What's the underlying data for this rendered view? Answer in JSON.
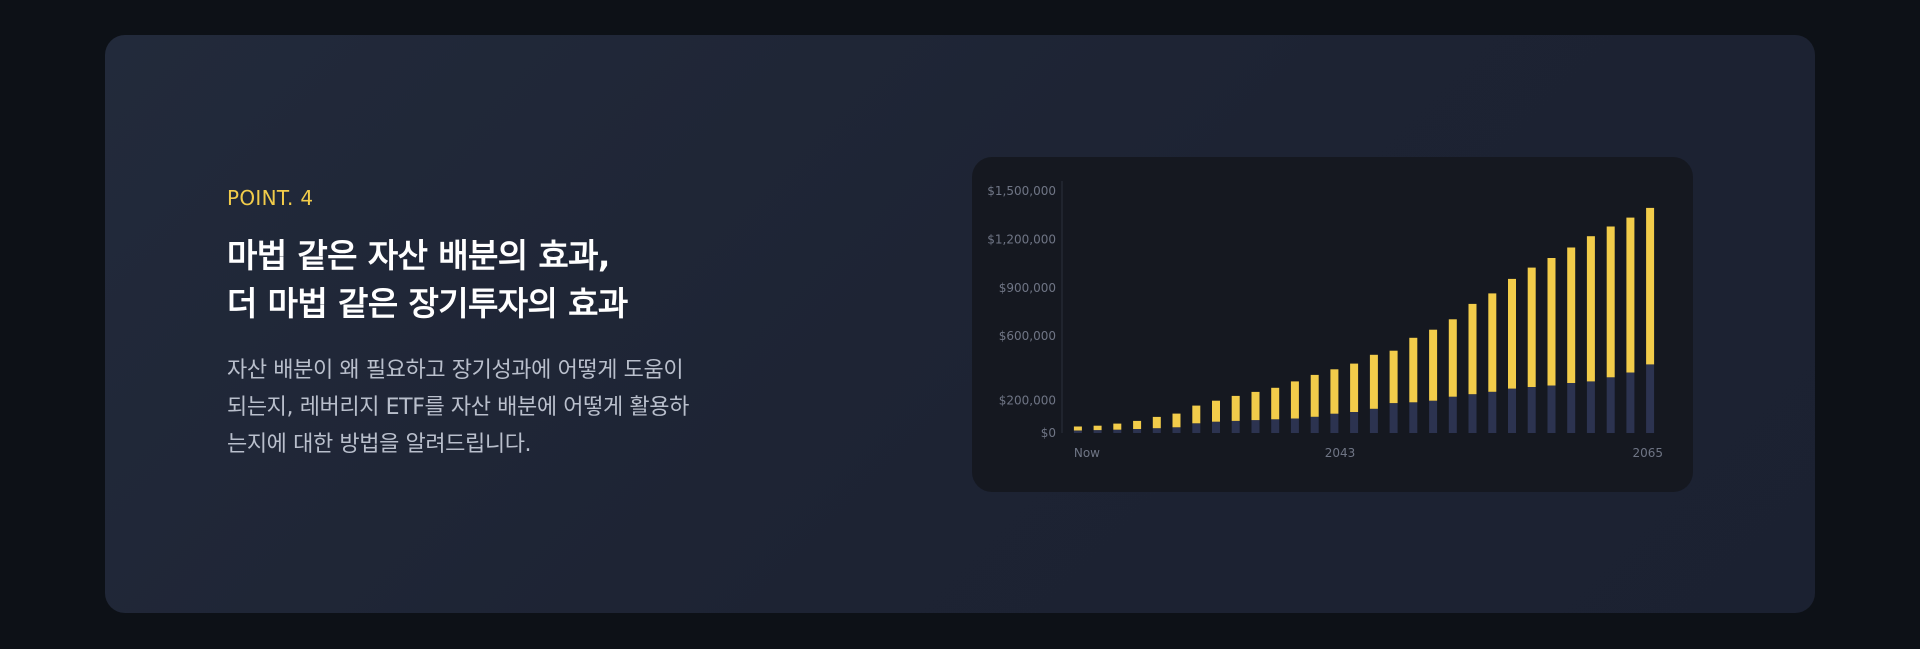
{
  "section": {
    "eyebrow": "POINT. 4",
    "headline_line1": "마법 같은 자산 배분의 효과,",
    "headline_line2": "더 마법 같은 장기투자의 효과",
    "description_line1": "자산 배분이 왜 필요하고 장기성과에 어떻게 도움이",
    "description_line2": "되는지, 레버리지 ETF를 자산 배분에 어떻게 활용하",
    "description_line3": "는지에 대한 방법을 알려드립니다."
  },
  "colors": {
    "accent_yellow": "#f2cc4a",
    "base_navy": "#2c3350",
    "card_bg": "#1f2536",
    "chart_bg": "#151820"
  },
  "chart_data": {
    "type": "bar",
    "stacked": true,
    "x_tick_labels": [
      "Now",
      "2043",
      "2065"
    ],
    "y_tick_labels": [
      "$0",
      "$200,000",
      "$600,000",
      "$900,000",
      "$1,200,000",
      "$1,500,000"
    ],
    "y_tick_values": [
      0,
      200000,
      600000,
      900000,
      1200000,
      1500000
    ],
    "ylim": [
      0,
      1500000
    ],
    "grid": false,
    "series": [
      {
        "color": "#2c3350",
        "values": [
          15000,
          18000,
          20000,
          25000,
          30000,
          35000,
          60000,
          70000,
          75000,
          80000,
          85000,
          90000,
          100000,
          120000,
          130000,
          150000,
          185000,
          190000,
          200000,
          225000,
          240000,
          255000,
          275000,
          285000,
          295000,
          310000,
          320000,
          345000,
          375000,
          425000
        ]
      },
      {
        "color": "#f2cc4a",
        "values": [
          25000,
          27000,
          38000,
          50000,
          70000,
          85000,
          110000,
          130000,
          155000,
          175000,
          195000,
          230000,
          260000,
          275000,
          300000,
          335000,
          325000,
          400000,
          440000,
          480000,
          560000,
          610000,
          680000,
          740000,
          790000,
          840000,
          900000,
          935000,
          960000,
          970000
        ]
      }
    ]
  }
}
